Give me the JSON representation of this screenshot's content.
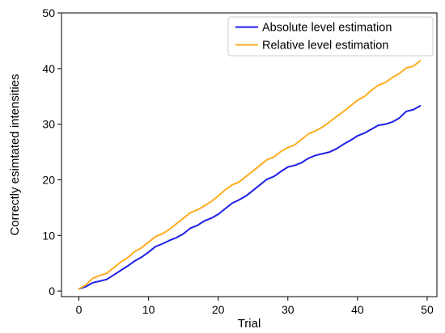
{
  "chart_data": {
    "type": "line",
    "xlabel": "Trial",
    "ylabel": "Correctly esimtated intensities",
    "xlim": [
      -2.5,
      51.4
    ],
    "ylim": [
      -1,
      50
    ],
    "xticks": [
      0,
      10,
      20,
      30,
      40,
      50
    ],
    "yticks": [
      0,
      10,
      20,
      30,
      40,
      50
    ],
    "grid": false,
    "legend_position": "top-right",
    "x": [
      0,
      1,
      2,
      3,
      4,
      5,
      6,
      7,
      8,
      9,
      10,
      11,
      12,
      13,
      14,
      15,
      16,
      17,
      18,
      19,
      20,
      21,
      22,
      23,
      24,
      25,
      26,
      27,
      28,
      29,
      30,
      31,
      32,
      33,
      34,
      35,
      36,
      37,
      38,
      39,
      40,
      41,
      42,
      43,
      44,
      45,
      46,
      47,
      48,
      49
    ],
    "series": [
      {
        "name": "Absolute level estimation",
        "color": "#1f1fe6",
        "values": [
          0.4,
          0.8,
          1.5,
          1.8,
          2.1,
          2.9,
          3.7,
          4.5,
          5.4,
          6.1,
          7.0,
          8.0,
          8.5,
          9.1,
          9.6,
          10.3,
          11.3,
          11.8,
          12.6,
          13.1,
          13.8,
          14.8,
          15.8,
          16.4,
          17.1,
          18.1,
          19.1,
          20.1,
          20.6,
          21.5,
          22.3,
          22.6,
          23.1,
          23.9,
          24.4,
          24.7,
          25.0,
          25.6,
          26.4,
          27.1,
          27.9,
          28.4,
          29.1,
          29.8,
          30.0,
          30.4,
          31.1,
          32.3,
          32.6,
          33.3
        ]
      },
      {
        "name": "Relative level estimation",
        "color": "#ffad1f",
        "values": [
          0.4,
          1.1,
          2.3,
          2.8,
          3.2,
          4.2,
          5.2,
          6.0,
          7.1,
          7.8,
          8.8,
          9.8,
          10.3,
          11.1,
          12.1,
          13.1,
          14.1,
          14.6,
          15.3,
          16.1,
          17.1,
          18.2,
          19.1,
          19.6,
          20.6,
          21.6,
          22.6,
          23.6,
          24.1,
          25.1,
          25.8,
          26.3,
          27.3,
          28.3,
          28.8,
          29.5,
          30.4,
          31.4,
          32.3,
          33.3,
          34.3,
          35.0,
          36.1,
          37.0,
          37.5,
          38.4,
          39.1,
          40.1,
          40.4,
          41.4
        ]
      }
    ]
  }
}
